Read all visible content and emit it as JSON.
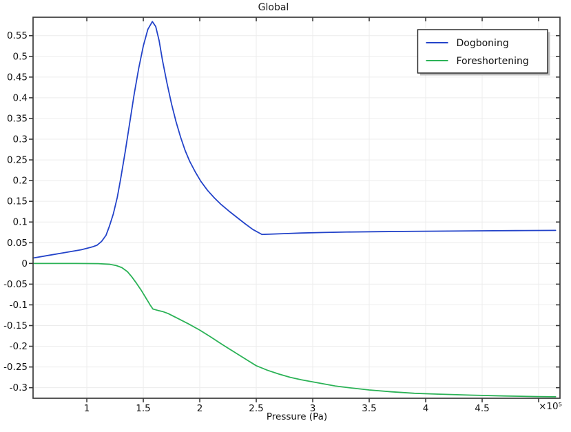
{
  "chart_data": {
    "type": "line",
    "title": "Global",
    "xlabel": "Pressure (Pa)",
    "ylabel": "",
    "grid": true,
    "legend_position": "top-right",
    "colors": {
      "background": "#ffffff",
      "frame": "#3a3a3a",
      "grid": "#ececec",
      "text": "#111111",
      "legend_border": "#222222",
      "legend_shadow": "#bcbcbc"
    },
    "x_axis": {
      "label": "Pressure (Pa)",
      "multiplier_label": "×10⁵",
      "unit_multiplier": 100000,
      "min": 0.524,
      "max": 5.189,
      "tick_values": [
        1,
        1.5,
        2,
        2.5,
        3,
        3.5,
        4,
        4.5,
        5
      ],
      "tick_labels": [
        "1",
        "1.5",
        "2",
        "2.5",
        "3",
        "3.5",
        "4",
        "4.5",
        ""
      ]
    },
    "y_axis": {
      "label": "",
      "min": -0.3255,
      "max": 0.5945,
      "tick_values": [
        0.55,
        0.5,
        0.45,
        0.4,
        0.35,
        0.3,
        0.25,
        0.2,
        0.15,
        0.1,
        0.05,
        0,
        -0.05,
        -0.1,
        -0.15,
        -0.2,
        -0.25,
        -0.3
      ],
      "tick_labels": [
        "0.55",
        "0.5",
        "0.45",
        "0.4",
        "0.35",
        "0.3",
        "0.25",
        "0.2",
        "0.15",
        "0.1",
        "0.05",
        "0",
        "-0.05",
        "-0.1",
        "-0.15",
        "-0.2",
        "-0.25",
        "-0.3"
      ]
    },
    "series": [
      {
        "name": "Dogboning",
        "color": "#2343c9",
        "points": [
          [
            0.524,
            0.013
          ],
          [
            0.65,
            0.019
          ],
          [
            0.8,
            0.026
          ],
          [
            0.95,
            0.033
          ],
          [
            1.05,
            0.04
          ],
          [
            1.09,
            0.044
          ],
          [
            1.13,
            0.053
          ],
          [
            1.17,
            0.068
          ],
          [
            1.2,
            0.09
          ],
          [
            1.235,
            0.12
          ],
          [
            1.27,
            0.16
          ],
          [
            1.3,
            0.205
          ],
          [
            1.34,
            0.27
          ],
          [
            1.38,
            0.34
          ],
          [
            1.42,
            0.41
          ],
          [
            1.46,
            0.472
          ],
          [
            1.5,
            0.525
          ],
          [
            1.54,
            0.565
          ],
          [
            1.58,
            0.584
          ],
          [
            1.61,
            0.572
          ],
          [
            1.64,
            0.538
          ],
          [
            1.67,
            0.49
          ],
          [
            1.71,
            0.435
          ],
          [
            1.75,
            0.385
          ],
          [
            1.79,
            0.342
          ],
          [
            1.83,
            0.305
          ],
          [
            1.87,
            0.273
          ],
          [
            1.91,
            0.247
          ],
          [
            1.96,
            0.221
          ],
          [
            2.01,
            0.198
          ],
          [
            2.07,
            0.176
          ],
          [
            2.13,
            0.158
          ],
          [
            2.19,
            0.142
          ],
          [
            2.26,
            0.126
          ],
          [
            2.33,
            0.111
          ],
          [
            2.4,
            0.096
          ],
          [
            2.47,
            0.082
          ],
          [
            2.55,
            0.07
          ],
          [
            2.7,
            0.0715
          ],
          [
            2.9,
            0.0735
          ],
          [
            3.1,
            0.0748
          ],
          [
            3.3,
            0.0758
          ],
          [
            3.6,
            0.0768
          ],
          [
            3.9,
            0.0775
          ],
          [
            4.2,
            0.0782
          ],
          [
            4.5,
            0.0788
          ],
          [
            4.8,
            0.0793
          ],
          [
            5.15,
            0.0798
          ]
        ]
      },
      {
        "name": "Foreshortening",
        "color": "#2bb256",
        "points": [
          [
            0.524,
            0.0
          ],
          [
            0.9,
            0.0
          ],
          [
            1.1,
            -0.0005
          ],
          [
            1.2,
            -0.002
          ],
          [
            1.26,
            -0.005
          ],
          [
            1.31,
            -0.01
          ],
          [
            1.36,
            -0.02
          ],
          [
            1.4,
            -0.033
          ],
          [
            1.44,
            -0.048
          ],
          [
            1.48,
            -0.064
          ],
          [
            1.52,
            -0.082
          ],
          [
            1.56,
            -0.1
          ],
          [
            1.585,
            -0.11
          ],
          [
            1.63,
            -0.1135
          ],
          [
            1.67,
            -0.116
          ],
          [
            1.72,
            -0.121
          ],
          [
            1.8,
            -0.132
          ],
          [
            1.9,
            -0.146
          ],
          [
            2.0,
            -0.161
          ],
          [
            2.1,
            -0.178
          ],
          [
            2.2,
            -0.196
          ],
          [
            2.3,
            -0.213
          ],
          [
            2.4,
            -0.23
          ],
          [
            2.5,
            -0.247
          ],
          [
            2.6,
            -0.258
          ],
          [
            2.7,
            -0.267
          ],
          [
            2.8,
            -0.275
          ],
          [
            2.9,
            -0.281
          ],
          [
            3.0,
            -0.286
          ],
          [
            3.1,
            -0.291
          ],
          [
            3.2,
            -0.296
          ],
          [
            3.35,
            -0.301
          ],
          [
            3.5,
            -0.3055
          ],
          [
            3.7,
            -0.31
          ],
          [
            3.9,
            -0.3135
          ],
          [
            4.1,
            -0.3155
          ],
          [
            4.4,
            -0.318
          ],
          [
            4.7,
            -0.32
          ],
          [
            5.0,
            -0.3215
          ],
          [
            5.15,
            -0.322
          ]
        ]
      }
    ],
    "legend_entries": [
      "Dogboning",
      "Foreshortening"
    ]
  }
}
